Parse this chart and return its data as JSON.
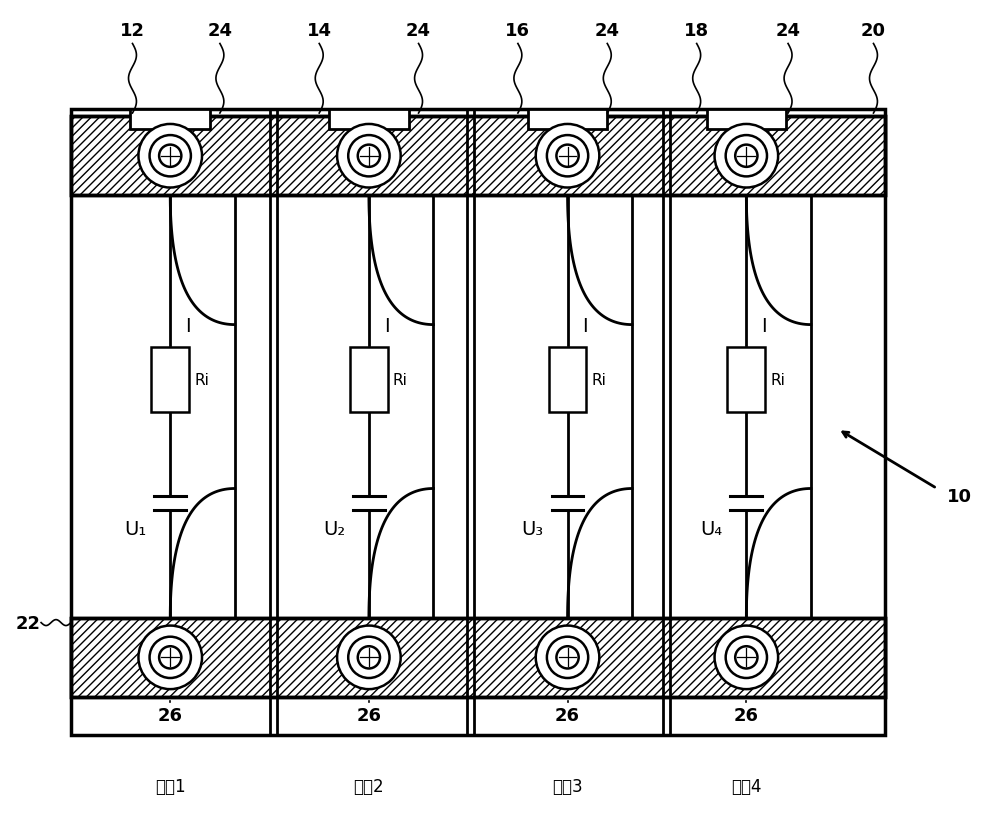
{
  "bg_color": "#ffffff",
  "cell_labels": [
    "U₁",
    "U₂",
    "U₃",
    "U₄"
  ],
  "cell_units": [
    "单䕓1",
    "单䕓2",
    "单䕓3",
    "单䕓4"
  ],
  "top_nums": [
    "12",
    "24",
    "14",
    "24",
    "16",
    "24",
    "18",
    "24",
    "20"
  ],
  "label_22": "22",
  "label_10": "10",
  "label_26": "26"
}
